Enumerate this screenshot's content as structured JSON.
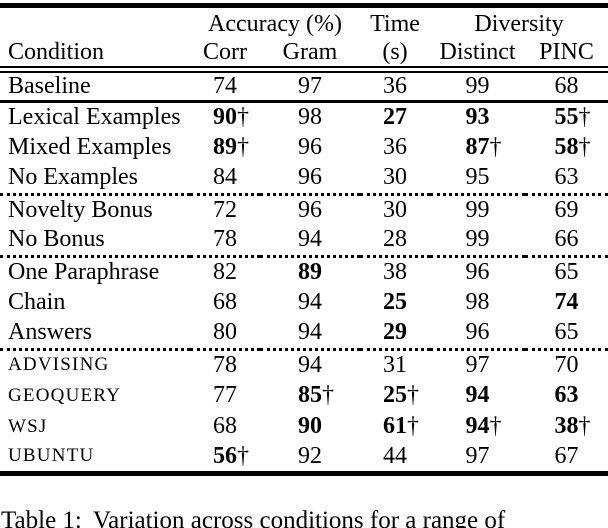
{
  "table": {
    "group_header": {
      "accuracy": "Accuracy (%)",
      "time": "Time",
      "diversity": "Diversity"
    },
    "col_header": {
      "condition": "Condition",
      "corr": "Corr",
      "gram": "Gram",
      "time_s": "(s)",
      "distinct": "Distinct",
      "pinc": "PINC"
    },
    "rows": [
      {
        "condition": "Baseline",
        "cells": [
          {
            "value": "74",
            "bold": false,
            "dagger": ""
          },
          {
            "value": "97",
            "bold": false,
            "dagger": ""
          },
          {
            "value": "36",
            "bold": false,
            "dagger": ""
          },
          {
            "value": "99",
            "bold": false,
            "dagger": ""
          },
          {
            "value": "68",
            "bold": false,
            "dagger": ""
          }
        ]
      },
      {
        "condition": "Lexical Examples",
        "cells": [
          {
            "value": "90",
            "bold": true,
            "dagger": "†"
          },
          {
            "value": "98",
            "bold": false,
            "dagger": ""
          },
          {
            "value": "27",
            "bold": true,
            "dagger": ""
          },
          {
            "value": "93",
            "bold": true,
            "dagger": ""
          },
          {
            "value": "55",
            "bold": true,
            "dagger": "†"
          }
        ]
      },
      {
        "condition": "Mixed Examples",
        "cells": [
          {
            "value": "89",
            "bold": true,
            "dagger": "†"
          },
          {
            "value": "96",
            "bold": false,
            "dagger": ""
          },
          {
            "value": "36",
            "bold": false,
            "dagger": ""
          },
          {
            "value": "87",
            "bold": true,
            "dagger": "†"
          },
          {
            "value": "58",
            "bold": true,
            "dagger": "†"
          }
        ]
      },
      {
        "condition": "No Examples",
        "cells": [
          {
            "value": "84",
            "bold": false,
            "dagger": ""
          },
          {
            "value": "96",
            "bold": false,
            "dagger": ""
          },
          {
            "value": "30",
            "bold": false,
            "dagger": ""
          },
          {
            "value": "95",
            "bold": false,
            "dagger": ""
          },
          {
            "value": "63",
            "bold": false,
            "dagger": ""
          }
        ]
      },
      {
        "condition": "Novelty Bonus",
        "cells": [
          {
            "value": "72",
            "bold": false,
            "dagger": ""
          },
          {
            "value": "96",
            "bold": false,
            "dagger": ""
          },
          {
            "value": "30",
            "bold": false,
            "dagger": ""
          },
          {
            "value": "99",
            "bold": false,
            "dagger": ""
          },
          {
            "value": "69",
            "bold": false,
            "dagger": ""
          }
        ]
      },
      {
        "condition": "No Bonus",
        "cells": [
          {
            "value": "78",
            "bold": false,
            "dagger": ""
          },
          {
            "value": "94",
            "bold": false,
            "dagger": ""
          },
          {
            "value": "28",
            "bold": false,
            "dagger": ""
          },
          {
            "value": "99",
            "bold": false,
            "dagger": ""
          },
          {
            "value": "66",
            "bold": false,
            "dagger": ""
          }
        ]
      },
      {
        "condition": "One Paraphrase",
        "cells": [
          {
            "value": "82",
            "bold": false,
            "dagger": ""
          },
          {
            "value": "89",
            "bold": true,
            "dagger": ""
          },
          {
            "value": "38",
            "bold": false,
            "dagger": ""
          },
          {
            "value": "96",
            "bold": false,
            "dagger": ""
          },
          {
            "value": "65",
            "bold": false,
            "dagger": ""
          }
        ]
      },
      {
        "condition": "Chain",
        "cells": [
          {
            "value": "68",
            "bold": false,
            "dagger": ""
          },
          {
            "value": "94",
            "bold": false,
            "dagger": ""
          },
          {
            "value": "25",
            "bold": true,
            "dagger": ""
          },
          {
            "value": "98",
            "bold": false,
            "dagger": ""
          },
          {
            "value": "74",
            "bold": true,
            "dagger": ""
          }
        ]
      },
      {
        "condition": "Answers",
        "cells": [
          {
            "value": "80",
            "bold": false,
            "dagger": ""
          },
          {
            "value": "94",
            "bold": false,
            "dagger": ""
          },
          {
            "value": "29",
            "bold": true,
            "dagger": ""
          },
          {
            "value": "96",
            "bold": false,
            "dagger": ""
          },
          {
            "value": "65",
            "bold": false,
            "dagger": ""
          }
        ]
      },
      {
        "condition": "ADVISING",
        "cells": [
          {
            "value": "78",
            "bold": false,
            "dagger": ""
          },
          {
            "value": "94",
            "bold": false,
            "dagger": ""
          },
          {
            "value": "31",
            "bold": false,
            "dagger": ""
          },
          {
            "value": "97",
            "bold": false,
            "dagger": ""
          },
          {
            "value": "70",
            "bold": false,
            "dagger": ""
          }
        ]
      },
      {
        "condition": "GEOQUERY",
        "cells": [
          {
            "value": "77",
            "bold": false,
            "dagger": ""
          },
          {
            "value": "85",
            "bold": true,
            "dagger": "†"
          },
          {
            "value": "25",
            "bold": true,
            "dagger": "†"
          },
          {
            "value": "94",
            "bold": true,
            "dagger": ""
          },
          {
            "value": "63",
            "bold": true,
            "dagger": ""
          }
        ]
      },
      {
        "condition": "WSJ",
        "cells": [
          {
            "value": "68",
            "bold": false,
            "dagger": ""
          },
          {
            "value": "90",
            "bold": true,
            "dagger": ""
          },
          {
            "value": "61",
            "bold": true,
            "dagger": "†"
          },
          {
            "value": "94",
            "bold": true,
            "dagger": "†"
          },
          {
            "value": "38",
            "bold": true,
            "dagger": "†"
          }
        ]
      },
      {
        "condition": "UBUNTU",
        "cells": [
          {
            "value": "56",
            "bold": true,
            "dagger": "†"
          },
          {
            "value": "92",
            "bold": false,
            "dagger": ""
          },
          {
            "value": "44",
            "bold": false,
            "dagger": ""
          },
          {
            "value": "97",
            "bold": false,
            "dagger": ""
          },
          {
            "value": "67",
            "bold": false,
            "dagger": ""
          }
        ]
      }
    ]
  },
  "caption": {
    "label": "Table 1:",
    "text": "Variation across conditions for a range of"
  },
  "colors": {
    "text": "#000000",
    "background": "#ffffff"
  }
}
